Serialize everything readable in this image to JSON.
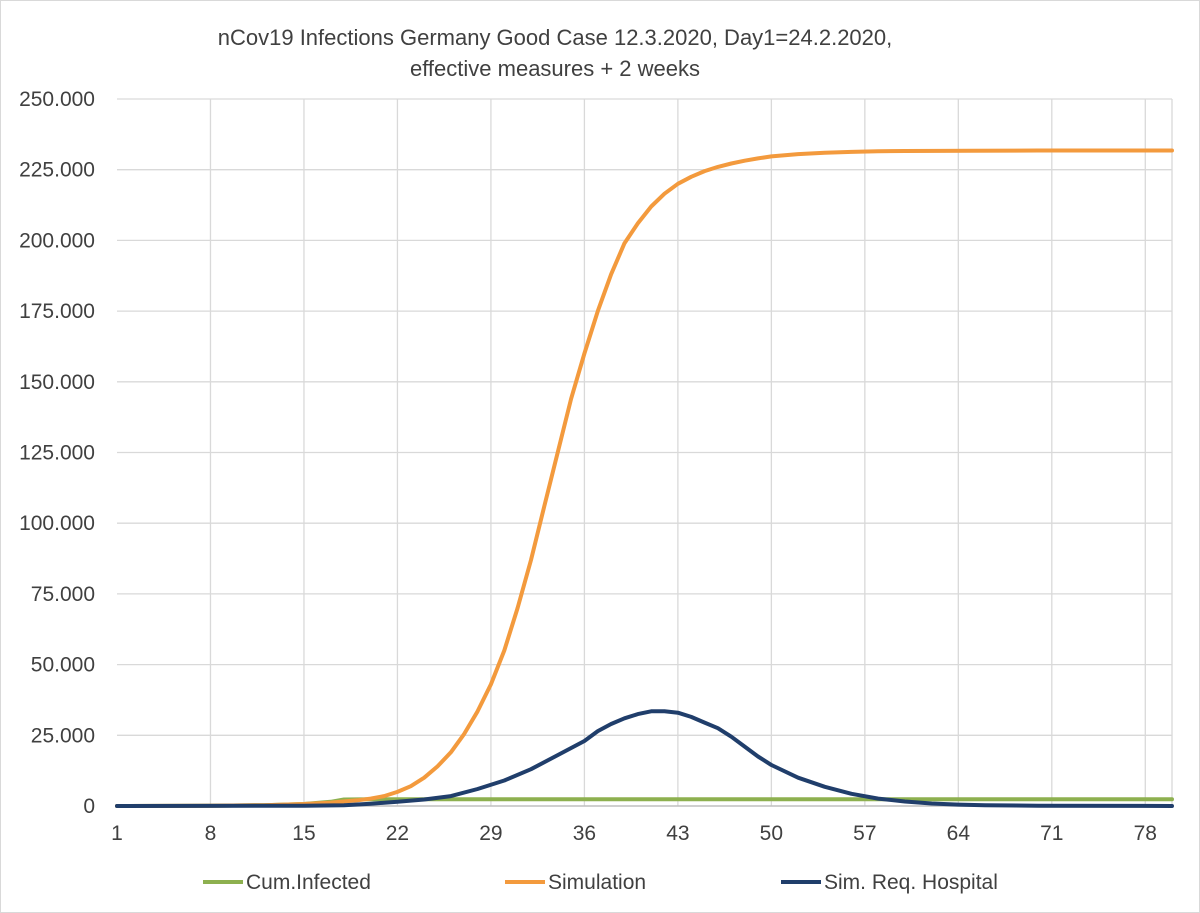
{
  "chart_data": {
    "type": "line",
    "title_lines": [
      "nCov19 Infections Germany Good Case 12.3.2020, Day1=24.2.2020,",
      "effective measures + 2 weeks"
    ],
    "xlabel": "",
    "ylabel": "",
    "x_range": [
      1,
      80
    ],
    "x_ticks": [
      1,
      8,
      15,
      22,
      29,
      36,
      43,
      50,
      57,
      64,
      71,
      78
    ],
    "x_tick_labels": [
      "1",
      "8",
      "15",
      "22",
      "29",
      "36",
      "43",
      "50",
      "57",
      "64",
      "71",
      "78"
    ],
    "ylim": [
      0,
      250000
    ],
    "y_ticks": [
      0,
      25000,
      50000,
      75000,
      100000,
      125000,
      150000,
      175000,
      200000,
      225000,
      250000
    ],
    "y_tick_labels": [
      "0",
      "25.000",
      "50.000",
      "75.000",
      "100.000",
      "125.000",
      "150.000",
      "175.000",
      "200.000",
      "225.000",
      "250.000"
    ],
    "grid": true,
    "legend_position": "bottom",
    "series": [
      {
        "name": "Cum.Infected",
        "color": "#8db04f",
        "points": [
          [
            1,
            0
          ],
          [
            8,
            100
          ],
          [
            12,
            300
          ],
          [
            15,
            700
          ],
          [
            17,
            1500
          ],
          [
            18,
            2300
          ],
          [
            20,
            2400
          ],
          [
            22,
            2400
          ],
          [
            80,
            2400
          ]
        ]
      },
      {
        "name": "Simulation",
        "color": "#f39a3d",
        "points": [
          [
            1,
            0
          ],
          [
            8,
            100
          ],
          [
            12,
            300
          ],
          [
            15,
            700
          ],
          [
            17,
            1200
          ],
          [
            19,
            2000
          ],
          [
            20,
            2600
          ],
          [
            21,
            3500
          ],
          [
            22,
            5000
          ],
          [
            23,
            7000
          ],
          [
            24,
            10000
          ],
          [
            25,
            14000
          ],
          [
            26,
            19000
          ],
          [
            27,
            25500
          ],
          [
            28,
            33500
          ],
          [
            29,
            43000
          ],
          [
            30,
            55000
          ],
          [
            31,
            70000
          ],
          [
            32,
            87000
          ],
          [
            33,
            106000
          ],
          [
            34,
            125000
          ],
          [
            35,
            144000
          ],
          [
            36,
            160000
          ],
          [
            37,
            175000
          ],
          [
            38,
            188000
          ],
          [
            39,
            199000
          ],
          [
            40,
            206000
          ],
          [
            41,
            212000
          ],
          [
            42,
            216500
          ],
          [
            43,
            220000
          ],
          [
            44,
            222500
          ],
          [
            45,
            224500
          ],
          [
            46,
            226000
          ],
          [
            47,
            227200
          ],
          [
            48,
            228200
          ],
          [
            49,
            229000
          ],
          [
            50,
            229700
          ],
          [
            52,
            230500
          ],
          [
            54,
            231000
          ],
          [
            56,
            231300
          ],
          [
            58,
            231500
          ],
          [
            60,
            231600
          ],
          [
            65,
            231700
          ],
          [
            70,
            231800
          ],
          [
            80,
            231800
          ]
        ]
      },
      {
        "name": "Sim. Req. Hospital",
        "color": "#203e6b",
        "points": [
          [
            1,
            0
          ],
          [
            15,
            100
          ],
          [
            18,
            300
          ],
          [
            20,
            800
          ],
          [
            22,
            1500
          ],
          [
            24,
            2300
          ],
          [
            26,
            3500
          ],
          [
            28,
            6000
          ],
          [
            30,
            9000
          ],
          [
            32,
            13000
          ],
          [
            34,
            18000
          ],
          [
            36,
            23000
          ],
          [
            37,
            26500
          ],
          [
            38,
            29000
          ],
          [
            39,
            31000
          ],
          [
            40,
            32500
          ],
          [
            41,
            33500
          ],
          [
            42,
            33500
          ],
          [
            43,
            33000
          ],
          [
            44,
            31500
          ],
          [
            45,
            29500
          ],
          [
            46,
            27500
          ],
          [
            47,
            24500
          ],
          [
            48,
            21000
          ],
          [
            49,
            17500
          ],
          [
            50,
            14500
          ],
          [
            52,
            10000
          ],
          [
            54,
            6800
          ],
          [
            56,
            4300
          ],
          [
            58,
            2600
          ],
          [
            60,
            1600
          ],
          [
            62,
            900
          ],
          [
            64,
            500
          ],
          [
            66,
            250
          ],
          [
            70,
            100
          ],
          [
            80,
            0
          ]
        ]
      }
    ]
  }
}
